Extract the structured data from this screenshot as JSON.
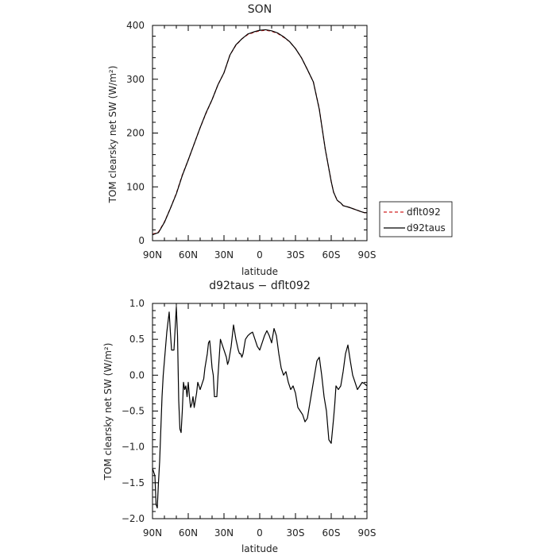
{
  "chart_data": [
    {
      "type": "line",
      "title": "SON",
      "xlabel": "latitude",
      "ylabel": "TOM clearsky net SW (W/m²)",
      "xlim": [
        -90,
        90
      ],
      "ylim": [
        0,
        400
      ],
      "x_ticks": [
        -90,
        -60,
        -30,
        0,
        30,
        60,
        90
      ],
      "x_tick_labels": [
        "90N",
        "60N",
        "30N",
        "0",
        "30S",
        "60S",
        "90S"
      ],
      "y_ticks": [
        0,
        100,
        200,
        300,
        400
      ],
      "y_tick_labels": [
        "0",
        "100",
        "200",
        "300",
        "400"
      ],
      "grid": false,
      "legend": {
        "position": "right",
        "entries": [
          {
            "name": "dflt092",
            "color": "#d02020",
            "dash": "dashed"
          },
          {
            "name": "d92taus",
            "color": "#000000",
            "dash": "solid"
          }
        ]
      },
      "series": [
        {
          "name": "dflt092",
          "color": "#d02020",
          "dash": "dashed",
          "x": [
            -90,
            -85,
            -80,
            -75,
            -70,
            -65,
            -60,
            -55,
            -50,
            -45,
            -40,
            -35,
            -30,
            -25,
            -20,
            -15,
            -10,
            -5,
            0,
            5,
            10,
            15,
            20,
            25,
            30,
            35,
            40,
            45,
            50,
            55,
            60,
            62,
            65,
            68,
            70,
            75,
            80,
            85,
            88,
            90
          ],
          "y": [
            12,
            16,
            35,
            60,
            88,
            122,
            150,
            180,
            210,
            237,
            262,
            290,
            312,
            345,
            363,
            375,
            383,
            387,
            390,
            391,
            389,
            385,
            378,
            370,
            357,
            340,
            318,
            295,
            245,
            170,
            110,
            90,
            75,
            70,
            65,
            62,
            58,
            54,
            52,
            52
          ]
        },
        {
          "name": "d92taus",
          "color": "#000000",
          "dash": "solid",
          "x": [
            -90,
            -85,
            -80,
            -75,
            -70,
            -65,
            -60,
            -55,
            -50,
            -45,
            -40,
            -35,
            -30,
            -25,
            -20,
            -15,
            -10,
            -5,
            0,
            5,
            10,
            15,
            20,
            25,
            30,
            35,
            40,
            45,
            50,
            55,
            60,
            62,
            65,
            68,
            70,
            75,
            80,
            85,
            88,
            90
          ],
          "y": [
            11,
            15,
            34,
            60,
            87,
            121,
            150,
            180,
            210,
            238,
            262,
            290,
            312,
            345,
            364,
            375,
            384,
            388,
            391,
            392,
            390,
            386,
            379,
            370,
            357,
            340,
            318,
            295,
            244,
            170,
            110,
            90,
            75,
            70,
            65,
            62,
            58,
            54,
            52,
            52
          ]
        }
      ]
    },
    {
      "type": "line",
      "title": "d92taus − dflt092",
      "xlabel": "latitude",
      "ylabel": "TOM clearsky net SW (W/m²)",
      "xlim": [
        -90,
        90
      ],
      "ylim": [
        -2.0,
        1.0
      ],
      "x_ticks": [
        -90,
        -60,
        -30,
        0,
        30,
        60,
        90
      ],
      "x_tick_labels": [
        "90N",
        "60N",
        "30N",
        "0",
        "30S",
        "60S",
        "90S"
      ],
      "y_ticks": [
        -2.0,
        -1.5,
        -1.0,
        -0.5,
        0.0,
        0.5,
        1.0
      ],
      "y_tick_labels": [
        "−2.0",
        "−1.5",
        "−1.0",
        "−0.5",
        "0.0",
        "0.5",
        "1.0"
      ],
      "grid": false,
      "series": [
        {
          "color": "#000000",
          "dash": "solid",
          "x": [
            -90,
            -88,
            -87,
            -86,
            -85,
            -84,
            -82,
            -81,
            -80,
            -78,
            -76,
            -75,
            -74,
            -72,
            -70,
            -69,
            -68,
            -67,
            -66,
            -65,
            -64,
            -63,
            -62,
            -61,
            -60,
            -59,
            -58,
            -57,
            -56,
            -55,
            -54,
            -53,
            -52,
            -51,
            -50,
            -48,
            -47,
            -46,
            -44,
            -43,
            -42,
            -41,
            -40,
            -39,
            -38,
            -36,
            -35,
            -33,
            -32,
            -30,
            -28,
            -27,
            -26,
            -24,
            -23,
            -22,
            -20,
            -18,
            -17,
            -16,
            -15,
            -14,
            -13,
            -12,
            -10,
            -8,
            -6,
            -4,
            -2,
            0,
            2,
            4,
            6,
            8,
            10,
            12,
            14,
            16,
            18,
            20,
            22,
            24,
            26,
            28,
            30,
            32,
            34,
            36,
            38,
            40,
            42,
            44,
            46,
            48,
            50,
            52,
            54,
            56,
            58,
            60,
            62,
            63,
            64,
            66,
            68,
            70,
            72,
            74,
            76,
            78,
            80,
            82,
            84,
            86,
            88,
            90
          ],
          "y": [
            -1.3,
            -1.4,
            -1.8,
            -1.85,
            -1.5,
            -1.2,
            -0.3,
            0.0,
            0.2,
            0.6,
            0.88,
            0.6,
            0.35,
            0.35,
            0.95,
            0.55,
            -0.35,
            -0.75,
            -0.8,
            -0.5,
            -0.1,
            -0.2,
            -0.15,
            -0.3,
            -0.1,
            -0.3,
            -0.45,
            -0.4,
            -0.3,
            -0.45,
            -0.35,
            -0.25,
            -0.1,
            -0.15,
            -0.2,
            -0.1,
            -0.05,
            0.1,
            0.3,
            0.45,
            0.48,
            0.3,
            0.1,
            0.0,
            -0.3,
            -0.3,
            0.0,
            0.5,
            0.45,
            0.35,
            0.25,
            0.15,
            0.2,
            0.4,
            0.55,
            0.7,
            0.5,
            0.35,
            0.3,
            0.3,
            0.25,
            0.3,
            0.4,
            0.5,
            0.55,
            0.58,
            0.6,
            0.5,
            0.4,
            0.35,
            0.45,
            0.55,
            0.62,
            0.55,
            0.45,
            0.65,
            0.55,
            0.3,
            0.1,
            0.0,
            0.05,
            -0.1,
            -0.2,
            -0.15,
            -0.25,
            -0.45,
            -0.5,
            -0.55,
            -0.65,
            -0.6,
            -0.4,
            -0.2,
            0.0,
            0.2,
            0.25,
            0.0,
            -0.3,
            -0.5,
            -0.9,
            -0.95,
            -0.6,
            -0.4,
            -0.15,
            -0.2,
            -0.15,
            0.05,
            0.3,
            0.42,
            0.2,
            0.0,
            -0.1,
            -0.2,
            -0.15,
            -0.1,
            -0.12,
            -0.15
          ]
        }
      ]
    }
  ]
}
